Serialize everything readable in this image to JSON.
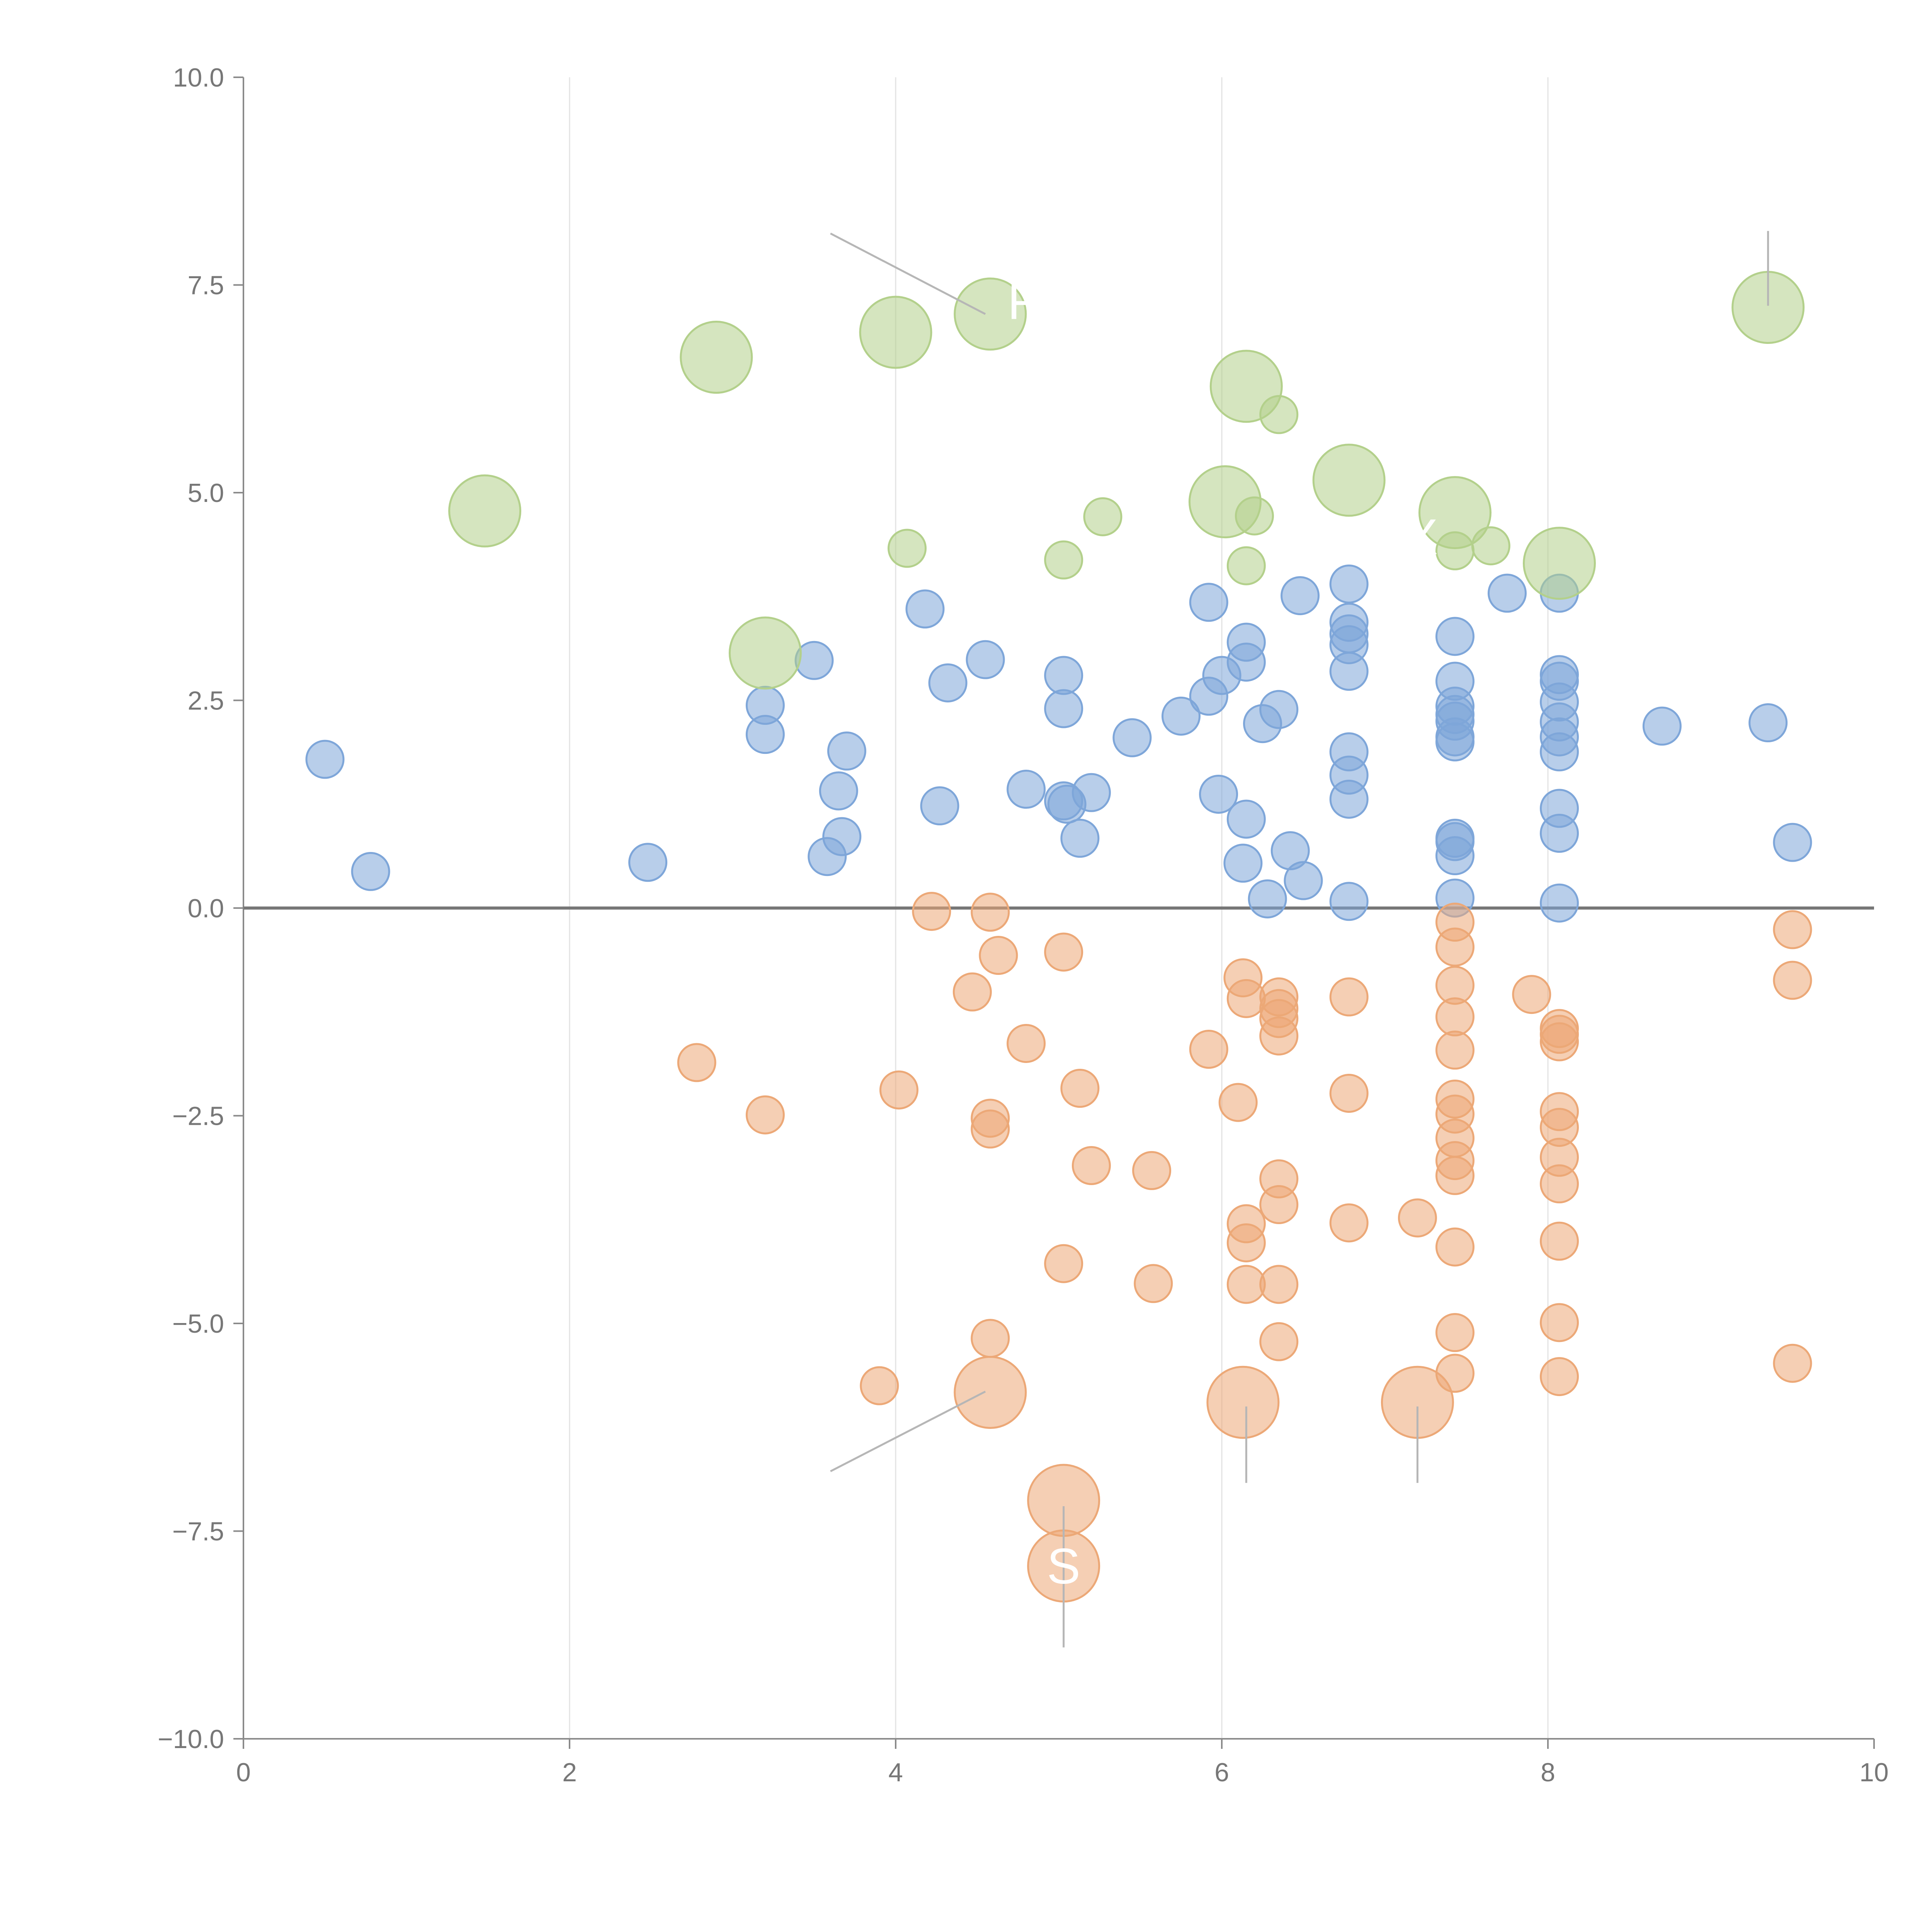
{
  "chart_data": {
    "type": "scatter",
    "title": "",
    "xlabel": "",
    "ylabel": "",
    "xlim": [
      0,
      10
    ],
    "ylim": [
      -10,
      10
    ],
    "grid": "vertical",
    "legend": "none",
    "x_ticks": [
      0,
      2,
      4,
      6,
      8,
      10
    ],
    "x_tick_labels": [
      "0",
      "2",
      "4",
      "6",
      "8",
      "10"
    ],
    "y_ticks": [
      10,
      7.5,
      5,
      2.5,
      0,
      -2.5,
      -5,
      -7.5,
      -10
    ],
    "y_tick_labels": [
      "10.0",
      "7.5",
      "5.0",
      "2.5",
      "0.0",
      "−2.5",
      "−5.0",
      "−7.5",
      "−10.0"
    ],
    "reference_line": {
      "y": 0
    },
    "colors": {
      "positive": "#7ea6d9",
      "negative": "#eca877",
      "highlight": "#b3d08b",
      "axis": "#8a8a8a",
      "grid": "#e3e3e3",
      "text": "#777777"
    },
    "series": [
      {
        "name": "positive",
        "color": "#7ea6d9",
        "size": 1,
        "points": [
          [
            0.5,
            1.79
          ],
          [
            0.78,
            0.44
          ],
          [
            2.48,
            0.55
          ],
          [
            3.2,
            2.44
          ],
          [
            3.2,
            2.09
          ],
          [
            3.5,
            2.98
          ],
          [
            3.58,
            0.62
          ],
          [
            3.65,
            1.41
          ],
          [
            3.67,
            0.86
          ],
          [
            3.7,
            1.89
          ],
          [
            4.18,
            3.6
          ],
          [
            4.27,
            1.23
          ],
          [
            4.32,
            2.71
          ],
          [
            4.55,
            2.99
          ],
          [
            4.8,
            1.43
          ],
          [
            5.03,
            2.8
          ],
          [
            5.03,
            2.4
          ],
          [
            5.03,
            1.29
          ],
          [
            5.05,
            1.25
          ],
          [
            5.13,
            0.84
          ],
          [
            5.2,
            1.39
          ],
          [
            5.45,
            2.05
          ],
          [
            5.75,
            2.31
          ],
          [
            5.92,
            3.68
          ],
          [
            5.92,
            2.55
          ],
          [
            6.0,
            2.8
          ],
          [
            5.98,
            1.37
          ],
          [
            6.15,
            3.2
          ],
          [
            6.15,
            2.96
          ],
          [
            6.13,
            0.54
          ],
          [
            6.15,
            1.07
          ],
          [
            6.25,
            2.22
          ],
          [
            6.28,
            0.11
          ],
          [
            6.35,
            2.39
          ],
          [
            6.42,
            0.69
          ],
          [
            6.5,
            0.33
          ],
          [
            6.48,
            3.76
          ],
          [
            6.78,
            3.9
          ],
          [
            6.78,
            3.44
          ],
          [
            6.78,
            3.3
          ],
          [
            6.78,
            3.17
          ],
          [
            6.78,
            2.85
          ],
          [
            6.78,
            1.88
          ],
          [
            6.78,
            1.6
          ],
          [
            6.78,
            1.31
          ],
          [
            6.78,
            0.08
          ],
          [
            7.43,
            3.27
          ],
          [
            7.43,
            2.73
          ],
          [
            7.43,
            2.43
          ],
          [
            7.43,
            2.33
          ],
          [
            7.43,
            2.25
          ],
          [
            7.43,
            2.06
          ],
          [
            7.43,
            2.0
          ],
          [
            7.43,
            0.84
          ],
          [
            7.43,
            0.8
          ],
          [
            7.43,
            0.63
          ],
          [
            7.43,
            0.12
          ],
          [
            7.75,
            3.79
          ],
          [
            8.07,
            3.79
          ],
          [
            8.07,
            2.81
          ],
          [
            8.07,
            2.73
          ],
          [
            8.07,
            2.48
          ],
          [
            8.07,
            2.24
          ],
          [
            8.07,
            2.06
          ],
          [
            8.07,
            1.88
          ],
          [
            8.07,
            1.2
          ],
          [
            8.07,
            0.9
          ],
          [
            8.07,
            0.06
          ],
          [
            8.7,
            2.19
          ],
          [
            9.35,
            2.23
          ],
          [
            9.5,
            0.79
          ]
        ]
      },
      {
        "name": "negative",
        "color": "#eca877",
        "size": 1,
        "points": [
          [
            2.78,
            -1.86
          ],
          [
            3.2,
            -2.49
          ],
          [
            4.02,
            -2.19
          ],
          [
            4.22,
            -0.04
          ],
          [
            4.47,
            -1.01
          ],
          [
            4.58,
            -0.05
          ],
          [
            4.63,
            -0.57
          ],
          [
            4.58,
            -2.53
          ],
          [
            4.58,
            -2.66
          ],
          [
            4.8,
            -1.63
          ],
          [
            5.03,
            -0.53
          ],
          [
            5.13,
            -2.17
          ],
          [
            5.2,
            -3.1
          ],
          [
            5.57,
            -3.16
          ],
          [
            5.58,
            -4.52
          ],
          [
            5.03,
            -4.28
          ],
          [
            4.58,
            -5.18
          ],
          [
            3.9,
            -5.75
          ],
          [
            5.92,
            -1.7
          ],
          [
            6.1,
            -2.34
          ],
          [
            6.13,
            -0.84
          ],
          [
            6.15,
            -1.09
          ],
          [
            6.35,
            -1.07
          ],
          [
            6.35,
            -1.21
          ],
          [
            6.35,
            -1.33
          ],
          [
            6.35,
            -1.54
          ],
          [
            6.35,
            -3.26
          ],
          [
            6.35,
            -3.57
          ],
          [
            6.35,
            -4.53
          ],
          [
            6.35,
            -5.22
          ],
          [
            6.15,
            -3.8
          ],
          [
            6.15,
            -4.03
          ],
          [
            6.15,
            -4.53
          ],
          [
            6.78,
            -1.07
          ],
          [
            6.78,
            -2.23
          ],
          [
            6.78,
            -3.79
          ],
          [
            7.2,
            -3.73
          ],
          [
            7.43,
            -0.17
          ],
          [
            7.43,
            -0.47
          ],
          [
            7.43,
            -0.93
          ],
          [
            7.43,
            -1.31
          ],
          [
            7.43,
            -1.71
          ],
          [
            7.43,
            -2.3
          ],
          [
            7.43,
            -2.48
          ],
          [
            7.43,
            -2.77
          ],
          [
            7.43,
            -3.04
          ],
          [
            7.43,
            -3.22
          ],
          [
            7.43,
            -4.08
          ],
          [
            7.43,
            -5.11
          ],
          [
            7.43,
            -5.6
          ],
          [
            7.9,
            -1.04
          ],
          [
            8.07,
            -1.45
          ],
          [
            8.07,
            -1.52
          ],
          [
            8.07,
            -1.61
          ],
          [
            8.07,
            -2.45
          ],
          [
            8.07,
            -2.64
          ],
          [
            8.07,
            -3.0
          ],
          [
            8.07,
            -3.32
          ],
          [
            8.07,
            -4.01
          ],
          [
            8.07,
            -4.99
          ],
          [
            8.07,
            -5.64
          ],
          [
            9.5,
            -0.26
          ],
          [
            9.5,
            -0.87
          ],
          [
            9.5,
            -5.48
          ]
        ]
      },
      {
        "name": "highlight-positive",
        "color": "#b3d08b",
        "points": [
          [
            1.48,
            4.78,
            2
          ],
          [
            2.9,
            6.63,
            2
          ],
          [
            3.2,
            3.07,
            2
          ],
          [
            4.0,
            6.93,
            2
          ],
          [
            4.58,
            7.15,
            2
          ],
          [
            6.15,
            6.28,
            2
          ],
          [
            6.02,
            4.89,
            2
          ],
          [
            6.78,
            5.15,
            2
          ],
          [
            7.43,
            4.76,
            2
          ],
          [
            8.07,
            4.15,
            2
          ],
          [
            9.35,
            7.23,
            2
          ],
          [
            4.07,
            4.33,
            1
          ],
          [
            5.03,
            4.19,
            1
          ],
          [
            5.27,
            4.71,
            1
          ],
          [
            6.15,
            4.12,
            1
          ],
          [
            6.2,
            4.72,
            1
          ],
          [
            6.35,
            5.94,
            1
          ],
          [
            7.43,
            4.3,
            1
          ],
          [
            7.65,
            4.36,
            1
          ]
        ]
      },
      {
        "name": "highlight-negative",
        "color": "#eca877",
        "size": 2,
        "points": [
          [
            4.58,
            -5.83
          ],
          [
            6.13,
            -5.95
          ],
          [
            7.2,
            -5.95
          ],
          [
            5.03,
            -7.13
          ],
          [
            5.03,
            -7.92
          ]
        ]
      }
    ],
    "callouts": [
      {
        "label": "F",
        "x": 4.78,
        "y": 7.3
      },
      {
        "label": "FLIX",
        "x": 7.0,
        "y": 4.47
      },
      {
        "label": "S",
        "x": 5.03,
        "y": -7.92
      }
    ],
    "leader_lines": [
      {
        "x1": 3.6,
        "y1": 8.12,
        "x2": 4.55,
        "y2": 7.15
      },
      {
        "x1": 9.35,
        "y1": 8.15,
        "x2": 9.35,
        "y2": 7.25
      },
      {
        "x1": 3.6,
        "y1": -6.78,
        "x2": 4.55,
        "y2": -5.82
      },
      {
        "x1": 6.15,
        "y1": -6.0,
        "x2": 6.15,
        "y2": -6.92
      },
      {
        "x1": 7.2,
        "y1": -6.0,
        "x2": 7.2,
        "y2": -6.92
      },
      {
        "x1": 5.03,
        "y1": -7.2,
        "x2": 5.03,
        "y2": -8.9
      }
    ]
  }
}
